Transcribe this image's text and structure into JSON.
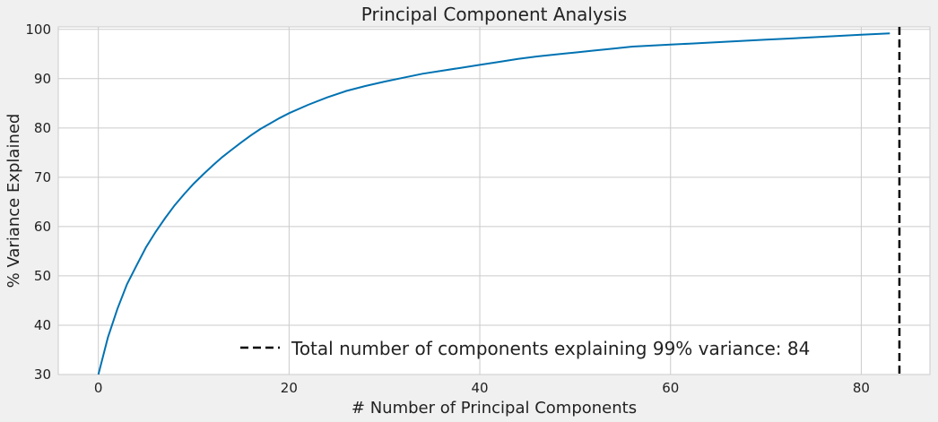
{
  "chart_data": {
    "type": "line",
    "title": "Principal Component Analysis",
    "xlabel": "# Number of Principal Components",
    "ylabel": "% Variance Explained",
    "xlim": [
      -4.2,
      87.2
    ],
    "ylim": [
      30,
      100.5
    ],
    "xticks": [
      0,
      20,
      40,
      60,
      80
    ],
    "yticks": [
      30,
      40,
      50,
      60,
      70,
      80,
      90,
      100
    ],
    "grid": true,
    "series": [
      {
        "values_x": [
          0,
          1,
          2,
          3,
          4,
          5,
          6,
          7,
          8,
          9,
          10,
          11,
          12,
          13,
          14,
          15,
          16,
          17,
          18,
          19,
          20,
          22,
          24,
          26,
          28,
          30,
          32,
          34,
          36,
          38,
          40,
          42,
          44,
          46,
          48,
          50,
          52,
          54,
          56,
          58,
          60,
          62,
          64,
          66,
          68,
          70,
          72,
          74,
          76,
          78,
          80,
          82,
          83
        ],
        "values_y": [
          30.0,
          37.5,
          43.3,
          48.3,
          52.1,
          55.8,
          58.9,
          61.7,
          64.3,
          66.6,
          68.7,
          70.6,
          72.4,
          74.1,
          75.6,
          77.1,
          78.5,
          79.8,
          80.9,
          82.0,
          83.0,
          84.7,
          86.2,
          87.5,
          88.5,
          89.4,
          90.2,
          91.0,
          91.6,
          92.2,
          92.8,
          93.4,
          94.0,
          94.5,
          94.9,
          95.3,
          95.7,
          96.1,
          96.5,
          96.7,
          96.9,
          97.1,
          97.3,
          97.5,
          97.7,
          97.9,
          98.1,
          98.3,
          98.5,
          98.7,
          98.9,
          99.1,
          99.2
        ],
        "color": "#0072b2"
      }
    ],
    "threshold_line": {
      "x": 84,
      "style": "dashed",
      "color": "#000000"
    },
    "legend": {
      "placement": "lower-center",
      "label": "Total number of components explaining 99% variance: 84"
    },
    "colors": {
      "background": "#f0f0f0",
      "plot_background": "#ffffff",
      "grid": "#cbcbcb"
    }
  }
}
